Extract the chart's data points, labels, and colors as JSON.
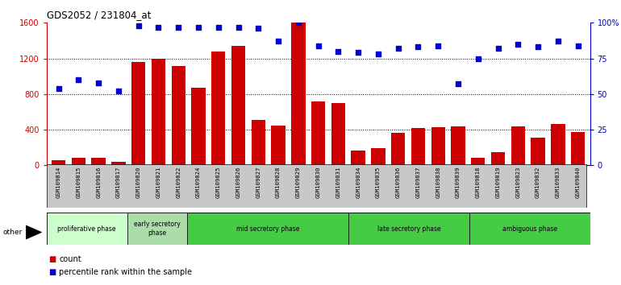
{
  "title": "GDS2052 / 231804_at",
  "samples": [
    "GSM109814",
    "GSM109815",
    "GSM109816",
    "GSM109817",
    "GSM109820",
    "GSM109821",
    "GSM109822",
    "GSM109824",
    "GSM109825",
    "GSM109826",
    "GSM109827",
    "GSM109828",
    "GSM109829",
    "GSM109830",
    "GSM109831",
    "GSM109834",
    "GSM109835",
    "GSM109836",
    "GSM109837",
    "GSM109838",
    "GSM109839",
    "GSM109818",
    "GSM109819",
    "GSM109823",
    "GSM109832",
    "GSM109833",
    "GSM109840"
  ],
  "counts": [
    55,
    85,
    80,
    40,
    1160,
    1200,
    1115,
    870,
    1280,
    1340,
    510,
    450,
    1600,
    720,
    700,
    170,
    195,
    360,
    420,
    430,
    440,
    80,
    150,
    440,
    310,
    460,
    370
  ],
  "percentiles": [
    54,
    60,
    58,
    52,
    98,
    97,
    97,
    97,
    97,
    97,
    96,
    87,
    100,
    84,
    80,
    79,
    78,
    82,
    83,
    84,
    57,
    75,
    82,
    85,
    83,
    87,
    84
  ],
  "ylim_left": [
    0,
    1600
  ],
  "ylim_right": [
    0,
    100
  ],
  "yticks_left": [
    0,
    400,
    800,
    1200,
    1600
  ],
  "yticks_right": [
    0,
    25,
    50,
    75,
    100
  ],
  "bar_color": "#cc0000",
  "dot_color": "#0000cc",
  "tick_bg_color": "#c8c8c8",
  "phases": [
    {
      "label": "proliferative phase",
      "start": 0,
      "end": 4,
      "color": "#ccffcc"
    },
    {
      "label": "early secretory\nphase",
      "start": 4,
      "end": 7,
      "color": "#aaddaa"
    },
    {
      "label": "mid secretory phase",
      "start": 7,
      "end": 15,
      "color": "#44cc44"
    },
    {
      "label": "late secretory phase",
      "start": 15,
      "end": 21,
      "color": "#44cc44"
    },
    {
      "label": "ambiguous phase",
      "start": 21,
      "end": 27,
      "color": "#44cc44"
    }
  ],
  "legend_count_label": "count",
  "legend_pct_label": "percentile rank within the sample",
  "other_label": "other"
}
